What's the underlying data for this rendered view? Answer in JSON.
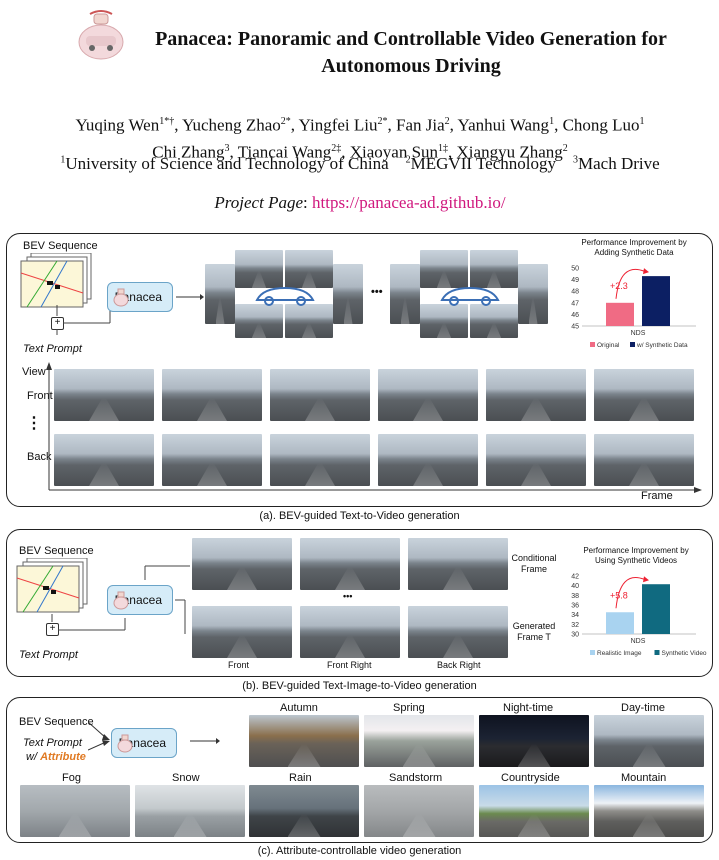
{
  "header": {
    "title_line1": "Panacea: Panoramic and Controllable Video Generation for",
    "title_line2": "Autonomous Driving",
    "authors_line1": [
      {
        "name": "Yuqing Wen",
        "sup": "1*†"
      },
      {
        "name": "Yucheng Zhao",
        "sup": "2*"
      },
      {
        "name": "Yingfei Liu",
        "sup": "2*"
      },
      {
        "name": "Fan Jia",
        "sup": "2"
      },
      {
        "name": "Yanhui Wang",
        "sup": "1"
      },
      {
        "name": "Chong Luo",
        "sup": "1"
      }
    ],
    "authors_line2": [
      {
        "name": "Chi Zhang",
        "sup": "3"
      },
      {
        "name": "Tiancai Wang",
        "sup": "2‡"
      },
      {
        "name": "Xiaoyan Sun",
        "sup": "1‡"
      },
      {
        "name": "Xiangyu Zhang",
        "sup": "2"
      }
    ],
    "affiliations": [
      {
        "sup": "1",
        "name": "University of Science and Technology of China"
      },
      {
        "sup": "2",
        "name": "MEGVII Technology"
      },
      {
        "sup": "3",
        "name": "Mach Drive"
      }
    ],
    "project_label": "Project Page",
    "project_url": "https://panacea-ad.github.io/"
  },
  "panel_a": {
    "bev_label": "BEV Sequence",
    "text_prompt": "Text Prompt",
    "model": "Panacea",
    "ellipsis": "•••",
    "view_label": "View",
    "front_label": "Front",
    "vdots": "⋮",
    "back_label": "Back",
    "frame_label": "Frame",
    "caption": "(a). BEV-guided Text-to-Video generation",
    "chart_title_1": "Performance Improvement by",
    "chart_title_2": "Adding Synthetic Data",
    "chart_delta": "+2.3",
    "chart_xlabel": "NDS"
  },
  "panel_b": {
    "bev_label": "BEV Sequence",
    "text_prompt": "Text Prompt",
    "model": "Panacea",
    "conditional_1": "Conditional",
    "conditional_2": "Frame",
    "generated_1": "Generated",
    "generated_2": "Frame T",
    "ellipsis": "•••",
    "views": [
      "Front",
      "Front Right",
      "Back Right"
    ],
    "caption": "(b). BEV-guided Text-Image-to-Video generation",
    "chart_title_1": "Performance Improvement by",
    "chart_title_2": "Using Synthetic Videos",
    "chart_delta": "+5.8",
    "chart_xlabel": "NDS"
  },
  "panel_c": {
    "bev_label": "BEV Sequence",
    "text_prompt": "Text Prompt",
    "with_attr_prefix": "w/",
    "attr_word": "Attribute",
    "model": "Panacea",
    "attributes_top": [
      "Autumn",
      "Spring",
      "Night-time",
      "Day-time"
    ],
    "attributes_bottom": [
      "Fog",
      "Snow",
      "Rain",
      "Sandstorm",
      "Countryside",
      "Mountain"
    ],
    "caption": "(c). Attribute-controllable video generation"
  },
  "chart_data": [
    {
      "type": "bar",
      "title": "Performance Improvement by Adding Synthetic Data",
      "xlabel": "NDS",
      "categories": [
        "NDS"
      ],
      "series": [
        {
          "name": "Original",
          "values": [
            47.0
          ],
          "color": "#f06b84"
        },
        {
          "name": "w/ Synthetic Data",
          "values": [
            49.3
          ],
          "color": "#0c1f63"
        }
      ],
      "yticks": [
        45,
        46,
        47,
        48,
        49,
        50
      ],
      "ylim": [
        45,
        50
      ],
      "annotation": "+2.3",
      "legend": "bottom"
    },
    {
      "type": "bar",
      "title": "Performance Improvement by Using Synthetic Videos",
      "xlabel": "NDS",
      "categories": [
        "NDS"
      ],
      "series": [
        {
          "name": "Realistic Image",
          "values": [
            34.5
          ],
          "color": "#a9d3f0"
        },
        {
          "name": "Synthetic Video",
          "values": [
            40.3
          ],
          "color": "#106a80"
        }
      ],
      "yticks": [
        30,
        32,
        34,
        36,
        38,
        40,
        42
      ],
      "ylim": [
        30,
        42
      ],
      "annotation": "+5.8",
      "legend": "bottom"
    }
  ]
}
